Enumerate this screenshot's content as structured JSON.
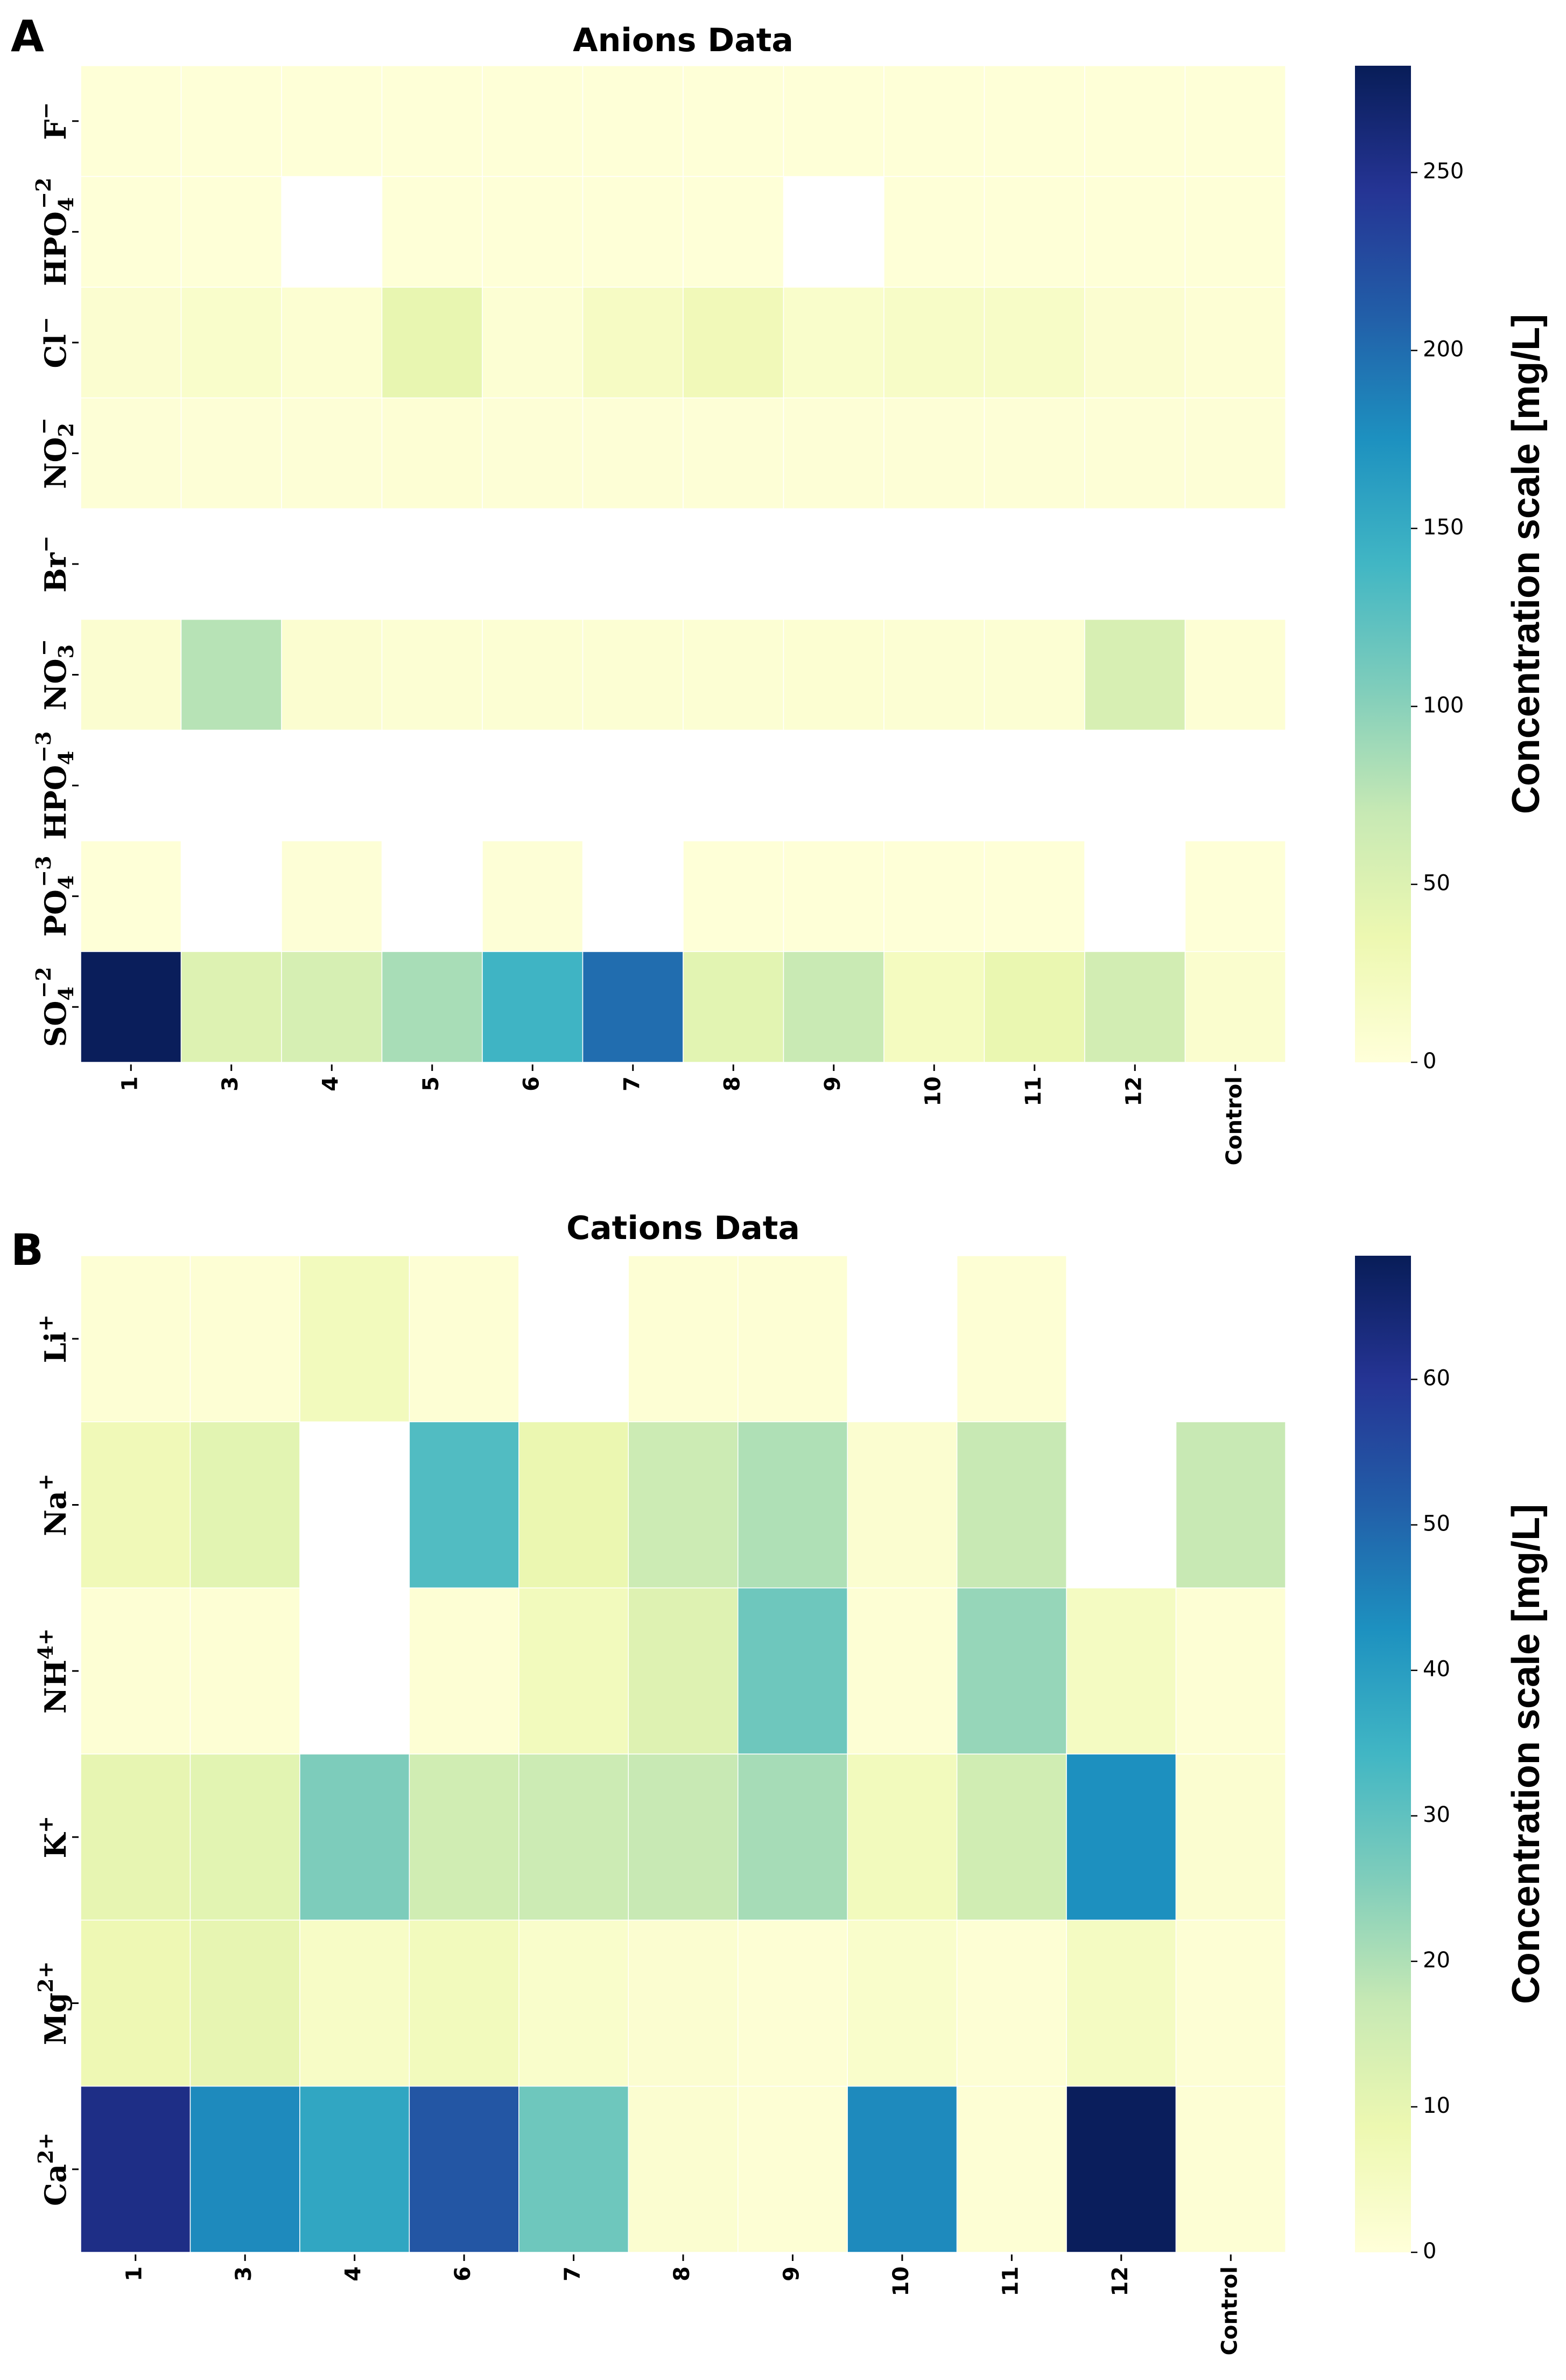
{
  "chart_data": [
    {
      "type": "heatmap",
      "panel": "A",
      "title": "Anions Data",
      "colormap": "YlGnBu",
      "x_categories": [
        "1",
        "3",
        "4",
        "5",
        "6",
        "7",
        "8",
        "9",
        "10",
        "11",
        "12",
        "Control"
      ],
      "y_categories": [
        {
          "base": "F",
          "sub": "",
          "sup": "−"
        },
        {
          "base": "HPO",
          "sub": "4",
          "sup": "−2"
        },
        {
          "base": "Cl",
          "sub": "",
          "sup": "−"
        },
        {
          "base": "NO",
          "sub": "2",
          "sup": "−"
        },
        {
          "base": "Br",
          "sub": "",
          "sup": "−"
        },
        {
          "base": "NO",
          "sub": "3",
          "sup": "−"
        },
        {
          "base": "HPO",
          "sub": "4",
          "sup": "−3"
        },
        {
          "base": "PO",
          "sub": "4",
          "sup": "−3"
        },
        {
          "base": "SO",
          "sub": "4",
          "sup": "−2"
        }
      ],
      "values": [
        [
          2,
          2,
          2,
          2,
          2,
          2,
          2,
          2,
          2,
          2,
          2,
          2
        ],
        [
          2,
          2,
          null,
          2,
          2,
          2,
          2,
          null,
          2,
          2,
          2,
          2
        ],
        [
          8,
          12,
          6,
          40,
          5,
          18,
          28,
          12,
          16,
          16,
          8,
          4
        ],
        [
          3,
          3,
          3,
          4,
          3,
          3,
          3,
          3,
          3,
          3,
          3,
          3
        ],
        [
          null,
          null,
          null,
          null,
          null,
          null,
          null,
          null,
          null,
          null,
          null,
          null
        ],
        [
          8,
          78,
          8,
          5,
          5,
          5,
          5,
          6,
          5,
          5,
          55,
          4
        ],
        [
          null,
          null,
          null,
          null,
          null,
          null,
          null,
          null,
          null,
          null,
          null,
          null
        ],
        [
          2,
          null,
          3,
          null,
          3,
          null,
          2,
          2,
          2,
          2,
          null,
          2
        ],
        [
          278,
          50,
          56,
          85,
          142,
          200,
          45,
          68,
          22,
          38,
          60,
          10
        ]
      ],
      "vmin": 0,
      "vmax": 280,
      "colorbar_ticks": [
        0,
        50,
        100,
        150,
        200,
        250
      ],
      "colorbar_label": "Concentration scale [mg/L]"
    },
    {
      "type": "heatmap",
      "panel": "B",
      "title": "Cations Data",
      "colormap": "YlGnBu",
      "x_categories": [
        "1",
        "3",
        "4",
        "6",
        "7",
        "8",
        "9",
        "10",
        "11",
        "12",
        "Control"
      ],
      "y_categories": [
        {
          "base": "Li",
          "sub": "",
          "sup": "+"
        },
        {
          "base": "Na",
          "sub": "",
          "sup": "+"
        },
        {
          "base": "NH",
          "sub": "",
          "sup": "4+"
        },
        {
          "base": "K",
          "sub": "",
          "sup": "+"
        },
        {
          "base": "Mg",
          "sub": "",
          "sup": "2+"
        },
        {
          "base": "Ca",
          "sub": "",
          "sup": "2+"
        }
      ],
      "values": [
        [
          1,
          1,
          6,
          1,
          null,
          1,
          1,
          null,
          1,
          null,
          null
        ],
        [
          7,
          11,
          null,
          32,
          9,
          16,
          20,
          2,
          17,
          null,
          17
        ],
        [
          1,
          1,
          null,
          1,
          6,
          12,
          28,
          1,
          23,
          5,
          1
        ],
        [
          10,
          11,
          26,
          15,
          16,
          17,
          21,
          6,
          15,
          43,
          2
        ],
        [
          8,
          10,
          4,
          6,
          3,
          2,
          1,
          3,
          1,
          5,
          1
        ],
        [
          62,
          44,
          38,
          53,
          28,
          2,
          1,
          44,
          1,
          68,
          1
        ]
      ],
      "vmin": 0,
      "vmax": 68.5,
      "colorbar_ticks": [
        0,
        10,
        20,
        30,
        40,
        50,
        60
      ],
      "colorbar_label": "Concentration scale [mg/L]"
    }
  ]
}
